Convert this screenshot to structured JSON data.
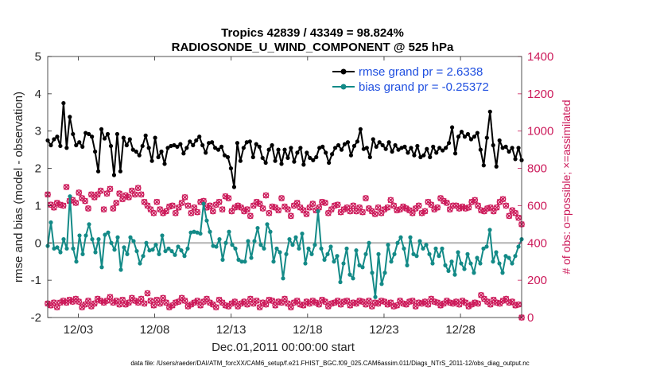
{
  "chart_data": {
    "type": "line",
    "title_line1": "Tropics 42839 / 43349 = 98.824%",
    "title_line2": "RADIOSONDE_U_WIND_COMPONENT @ 525 hPa",
    "xlabel": "Dec.01,2011 00:00:00 start",
    "ylabel_left": "rmse and bias (model - observation)",
    "ylabel_right": "# of obs: o=possible; ×=assimilated",
    "footer": "data file: /Users/raeder/DAI/ATM_forcXX/CAM6_setup/f.e21.FHIST_BGC.f09_025.CAM6assim.011/Diags_NTrS_2011-12/obs_diag_output.nc",
    "xlim": [
      1,
      32
    ],
    "ylim_left": [
      -2,
      5
    ],
    "ylim_right": [
      0,
      1400
    ],
    "x_ticks": [
      3,
      8,
      13,
      18,
      23,
      28
    ],
    "x_tick_labels": [
      "12/03",
      "12/08",
      "12/13",
      "12/18",
      "12/23",
      "12/28"
    ],
    "y_ticks_left": [
      "-2",
      "-1",
      "0",
      "1",
      "2",
      "3",
      "4",
      "5"
    ],
    "y_ticks_right": [
      "0",
      "200",
      "400",
      "600",
      "800",
      "1000",
      "1200",
      "1400"
    ],
    "legend": [
      {
        "label": "rmse grand pr = 2.6338",
        "color": "#000000"
      },
      {
        "label": "bias grand pr = -0.25372",
        "color": "#138a87"
      }
    ],
    "colors": {
      "rmse": "#000000",
      "bias": "#138a87",
      "counts": "#cc1a5a",
      "zero_line": "#b3b3b3"
    },
    "series": [
      {
        "name": "rmse",
        "values": [
          2.75,
          2.62,
          2.78,
          2.85,
          2.6,
          3.75,
          2.55,
          3.38,
          2.92,
          2.62,
          2.7,
          2.58,
          2.95,
          2.92,
          2.85,
          2.45,
          1.92,
          3.05,
          2.8,
          2.92,
          2.6,
          1.82,
          2.92,
          1.92,
          2.82,
          2.62,
          2.78,
          2.5,
          2.45,
          2.35,
          2.6,
          2.88,
          2.55,
          2.2,
          2.82,
          2.3,
          2.45,
          2.12,
          2.55,
          2.6,
          2.62,
          2.58,
          2.65,
          2.4,
          2.55,
          2.72,
          2.62,
          2.75,
          2.85,
          2.62,
          2.42,
          2.68,
          2.7,
          2.55,
          2.5,
          2.58,
          2.35,
          2.3,
          2.0,
          1.5,
          2.68,
          2.2,
          2.55,
          2.7,
          2.72,
          2.3,
          2.65,
          2.58,
          2.28,
          2.15,
          2.5,
          2.62,
          2.2,
          2.5,
          2.12,
          2.5,
          2.28,
          2.55,
          2.18,
          2.42,
          2.55,
          2.1,
          2.42,
          2.28,
          2.22,
          2.3,
          2.55,
          2.58,
          2.42,
          2.15,
          2.38,
          2.55,
          2.62,
          2.5,
          2.65,
          2.7,
          2.35,
          2.6,
          2.72,
          3.05,
          2.52,
          2.55,
          2.3,
          2.78,
          2.58,
          2.7,
          2.62,
          2.52,
          2.7,
          2.45,
          2.62,
          2.5,
          2.55,
          2.58,
          2.42,
          2.55,
          2.35,
          2.6,
          2.3,
          2.35,
          2.52,
          2.3,
          2.58,
          2.42,
          2.55,
          2.48,
          2.55,
          2.68,
          3.1,
          2.4,
          2.85,
          2.98,
          2.85,
          2.92,
          2.78,
          2.85,
          2.95,
          2.5,
          2.08,
          2.82,
          3.52,
          2.62,
          2.05,
          2.75,
          2.55,
          2.58,
          2.45,
          2.55,
          2.25,
          2.55,
          2.22
        ]
      },
      {
        "name": "bias",
        "values": [
          -0.08,
          0.55,
          -0.15,
          -0.12,
          -0.25,
          0.1,
          -0.15,
          1.25,
          -0.15,
          -0.5,
          0.2,
          -0.3,
          0.2,
          0.5,
          0.1,
          -0.25,
          0.1,
          -0.65,
          0.22,
          0.28,
          0.0,
          -0.18,
          0.15,
          -0.72,
          -0.12,
          -0.3,
          0.15,
          0.05,
          -0.22,
          -0.55,
          -0.35,
          0.0,
          -0.2,
          -0.18,
          -0.05,
          -0.3,
          0.2,
          -0.22,
          -0.15,
          -0.22,
          -0.32,
          -0.1,
          -0.2,
          -0.35,
          -0.15,
          0.28,
          0.3,
          0.28,
          0.25,
          1.05,
          0.6,
          0.3,
          -0.08,
          -0.1,
          0.1,
          -0.45,
          0.0,
          0.3,
          -0.05,
          -0.15,
          -0.45,
          -0.5,
          -0.5,
          0.05,
          -0.4,
          0.05,
          0.4,
          -0.05,
          -0.15,
          0.5,
          0.3,
          -0.5,
          -0.15,
          -0.25,
          -0.95,
          -0.3,
          0.1,
          -0.05,
          0.15,
          -0.15,
          0.25,
          -0.55,
          -0.15,
          -0.3,
          -0.05,
          0.85,
          -0.15,
          -0.45,
          -0.3,
          -0.1,
          -0.5,
          -0.35,
          -1.05,
          -0.55,
          -0.15,
          -0.85,
          -0.95,
          -0.2,
          -0.6,
          -0.65,
          -0.3,
          0.0,
          -0.8,
          -1.45,
          -0.3,
          -1.1,
          -0.8,
          -0.05,
          -0.5,
          -0.3,
          0.0,
          0.15,
          -0.15,
          -0.6,
          0.15,
          -0.3,
          -0.35,
          0.05,
          -0.15,
          -0.05,
          -0.3,
          -0.55,
          -0.15,
          -0.35,
          -0.15,
          -0.6,
          -0.75,
          -0.5,
          -0.85,
          -0.25,
          -0.55,
          -0.7,
          -0.3,
          -0.55,
          -0.8,
          -0.4,
          -0.55,
          -0.15,
          -0.1,
          0.35,
          -0.5,
          -0.25,
          -0.55,
          -0.8,
          -0.35,
          -0.4,
          -0.55,
          -0.35,
          -0.1,
          0.1
        ]
      },
      {
        "name": "possible",
        "values": [
          660,
          605,
          590,
          615,
          605,
          600,
          700,
          625,
          630,
          615,
          670,
          640,
          625,
          585,
          660,
          645,
          660,
          680,
          580,
          665,
          690,
          585,
          615,
          665,
          635,
          655,
          645,
          680,
          660,
          695,
          660,
          620,
          600,
          580,
          560,
          620,
          580,
          560,
          570,
          595,
          600,
          560,
          590,
          615,
          645,
          600,
          560,
          590,
          565,
          620,
          625,
          590,
          600,
          570,
          605,
          620,
          580,
          650,
          640,
          570,
          590,
          600,
          590,
          570,
          580,
          545,
          600,
          620,
          610,
          585,
          655,
          560,
          595,
          590,
          575,
          640,
          595,
          580,
          545,
          600,
          615,
          590,
          575,
          555,
          590,
          610,
          575,
          590,
          620,
          615,
          560,
          580,
          600,
          605,
          565,
          580,
          590,
          570,
          600,
          570,
          590,
          565,
          640,
          585,
          570,
          555,
          590,
          560,
          580,
          590,
          630,
          600,
          575,
          580,
          595,
          585,
          575,
          560,
          585,
          600,
          560,
          570,
          620,
          605,
          580,
          590,
          640,
          625,
          615,
          580,
          600,
          600,
          585,
          595,
          585,
          590,
          620,
          630,
          600,
          575,
          570,
          585,
          590,
          570,
          590,
          620,
          635,
          600,
          545,
          575,
          560,
          535,
          500
        ]
      },
      {
        "name": "assimilated",
        "values": [
          75,
          65,
          80,
          55,
          80,
          90,
          80,
          95,
          85,
          100,
          85,
          55,
          70,
          90,
          60,
          75,
          100,
          90,
          80,
          90,
          110,
          80,
          90,
          70,
          95,
          70,
          80,
          105,
          90,
          80,
          100,
          75,
          130,
          90,
          65,
          95,
          75,
          105,
          80,
          55,
          65,
          80,
          85,
          105,
          90,
          60,
          70,
          80,
          90,
          65,
          85,
          100,
          80,
          70,
          55,
          95,
          80,
          65,
          60,
          75,
          85,
          60,
          75,
          85,
          70,
          100,
          75,
          90,
          55,
          80,
          70,
          95,
          90,
          65,
          85,
          80,
          100,
          75,
          55,
          80,
          90,
          70,
          65,
          85,
          75,
          90,
          80,
          70,
          95,
          85,
          60,
          75,
          80,
          90,
          70,
          85,
          90,
          65,
          80,
          75,
          90,
          85,
          70,
          90,
          60,
          80,
          75,
          90,
          85,
          70,
          80,
          60,
          65,
          90,
          75,
          70,
          85,
          90,
          60,
          80,
          75,
          85,
          70,
          100,
          85,
          80,
          65,
          75,
          90,
          80,
          75,
          85,
          70,
          90,
          80,
          60,
          70,
          80,
          75,
          120,
          100,
          85,
          70,
          95,
          80,
          75,
          90,
          100,
          80,
          85,
          65,
          70,
          0
        ]
      }
    ]
  }
}
